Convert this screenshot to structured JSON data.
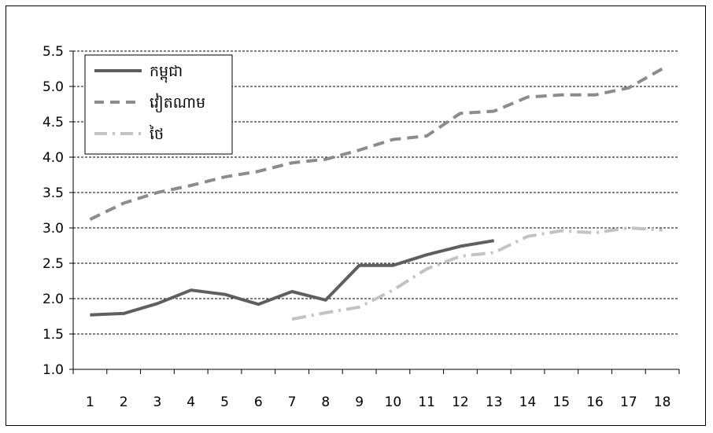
{
  "chart_data": {
    "type": "line",
    "title": "",
    "xlabel": "",
    "ylabel": "",
    "x": [
      1,
      2,
      3,
      4,
      5,
      6,
      7,
      8,
      9,
      10,
      11,
      12,
      13,
      14,
      15,
      16,
      17,
      18
    ],
    "x_tick_labels": [
      "1",
      "2",
      "3",
      "4",
      "5",
      "6",
      "7",
      "8",
      "9",
      "10",
      "11",
      "12",
      "13",
      "14",
      "15",
      "16",
      "17",
      "18"
    ],
    "ylim": [
      1.0,
      5.5
    ],
    "y_ticks": [
      1.0,
      1.5,
      2.0,
      2.5,
      3.0,
      3.5,
      4.0,
      4.5,
      5.0,
      5.5
    ],
    "y_tick_labels": [
      "1.0",
      "1.5",
      "2.0",
      "2.5",
      "3.0",
      "3.5",
      "4.0",
      "4.5",
      "5.0",
      "5.5"
    ],
    "grid": "horizontal-dashed",
    "legend_position": "top-left",
    "series": [
      {
        "name": "កម្ពុជា",
        "color": "#5f5f5f",
        "style": "solid",
        "values": [
          1.77,
          1.79,
          1.93,
          2.12,
          2.06,
          1.92,
          2.1,
          1.98,
          2.47,
          2.47,
          2.62,
          2.74,
          2.82,
          null,
          null,
          null,
          null,
          null
        ]
      },
      {
        "name": "វៀតណាម",
        "color": "#8c8c8c",
        "style": "dashed",
        "values": [
          3.12,
          3.35,
          3.5,
          3.6,
          3.72,
          3.8,
          3.92,
          3.97,
          4.1,
          4.25,
          4.3,
          4.62,
          4.65,
          4.85,
          4.88,
          4.88,
          4.98,
          5.25
        ]
      },
      {
        "name": "ថៃ",
        "color": "#c3c3c3",
        "style": "dashdot",
        "values": [
          null,
          null,
          null,
          null,
          null,
          null,
          1.71,
          1.8,
          1.88,
          2.12,
          2.42,
          2.6,
          2.65,
          2.88,
          2.96,
          2.93,
          3.0,
          2.97
        ]
      }
    ]
  }
}
